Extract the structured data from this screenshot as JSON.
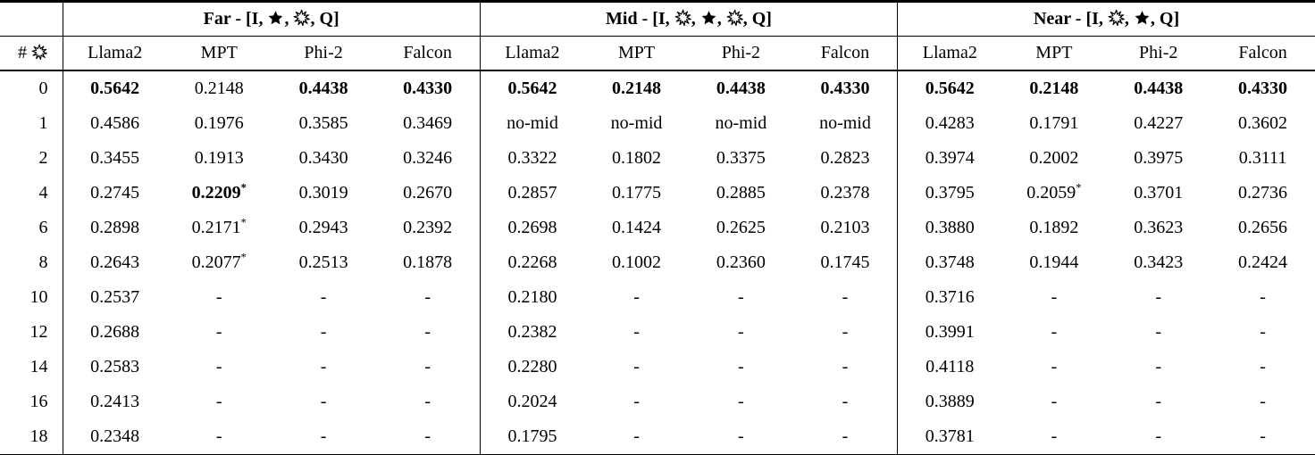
{
  "ui": {
    "hash": "#",
    "sep": ", ",
    "end": ", Q]",
    "asterisk": "*",
    "dash": "-",
    "text_color": "#000000",
    "background_color": "#ffffff",
    "icons": {
      "star": "star-icon",
      "collision": "collision-icon"
    }
  },
  "groups": [
    {
      "p1": "Far - [I, "
    },
    {
      "p1": "Mid - [I, "
    },
    {
      "p1": "Near - [I, "
    }
  ],
  "models": [
    "Llama2",
    "MPT",
    "Phi-2",
    "Falcon"
  ],
  "rows": [
    {
      "n": "0",
      "cells": [
        {
          "v": "0.5642",
          "b": true
        },
        {
          "v": "0.2148"
        },
        {
          "v": "0.4438",
          "b": true
        },
        {
          "v": "0.4330",
          "b": true
        },
        {
          "v": "0.5642",
          "b": true
        },
        {
          "v": "0.2148",
          "b": true
        },
        {
          "v": "0.4438",
          "b": true
        },
        {
          "v": "0.4330",
          "b": true
        },
        {
          "v": "0.5642",
          "b": true
        },
        {
          "v": "0.2148",
          "b": true
        },
        {
          "v": "0.4438",
          "b": true
        },
        {
          "v": "0.4330",
          "b": true
        }
      ]
    },
    {
      "n": "1",
      "cells": [
        {
          "v": "0.4586"
        },
        {
          "v": "0.1976"
        },
        {
          "v": "0.3585"
        },
        {
          "v": "0.3469"
        },
        {
          "v": "no-mid"
        },
        {
          "v": "no-mid"
        },
        {
          "v": "no-mid"
        },
        {
          "v": "no-mid"
        },
        {
          "v": "0.4283"
        },
        {
          "v": "0.1791"
        },
        {
          "v": "0.4227"
        },
        {
          "v": "0.3602"
        }
      ]
    },
    {
      "n": "2",
      "cells": [
        {
          "v": "0.3455"
        },
        {
          "v": "0.1913"
        },
        {
          "v": "0.3430"
        },
        {
          "v": "0.3246"
        },
        {
          "v": "0.3322"
        },
        {
          "v": "0.1802"
        },
        {
          "v": "0.3375"
        },
        {
          "v": "0.2823"
        },
        {
          "v": "0.3974"
        },
        {
          "v": "0.2002"
        },
        {
          "v": "0.3975"
        },
        {
          "v": "0.3111"
        }
      ]
    },
    {
      "n": "4",
      "cells": [
        {
          "v": "0.2745"
        },
        {
          "v": "0.2209",
          "b": true,
          "s": true
        },
        {
          "v": "0.3019"
        },
        {
          "v": "0.2670"
        },
        {
          "v": "0.2857"
        },
        {
          "v": "0.1775"
        },
        {
          "v": "0.2885"
        },
        {
          "v": "0.2378"
        },
        {
          "v": "0.3795"
        },
        {
          "v": "0.2059",
          "s": true
        },
        {
          "v": "0.3701"
        },
        {
          "v": "0.2736"
        }
      ]
    },
    {
      "n": "6",
      "cells": [
        {
          "v": "0.2898"
        },
        {
          "v": "0.2171",
          "s": true
        },
        {
          "v": "0.2943"
        },
        {
          "v": "0.2392"
        },
        {
          "v": "0.2698"
        },
        {
          "v": "0.1424"
        },
        {
          "v": "0.2625"
        },
        {
          "v": "0.2103"
        },
        {
          "v": "0.3880"
        },
        {
          "v": "0.1892"
        },
        {
          "v": "0.3623"
        },
        {
          "v": "0.2656"
        }
      ]
    },
    {
      "n": "8",
      "cells": [
        {
          "v": "0.2643"
        },
        {
          "v": "0.2077",
          "s": true
        },
        {
          "v": "0.2513"
        },
        {
          "v": "0.1878"
        },
        {
          "v": "0.2268"
        },
        {
          "v": "0.1002"
        },
        {
          "v": "0.2360"
        },
        {
          "v": "0.1745"
        },
        {
          "v": "0.3748"
        },
        {
          "v": "0.1944"
        },
        {
          "v": "0.3423"
        },
        {
          "v": "0.2424"
        }
      ]
    },
    {
      "n": "10",
      "cells": [
        {
          "v": "0.2537"
        },
        {
          "v": "-"
        },
        {
          "v": "-"
        },
        {
          "v": "-"
        },
        {
          "v": "0.2180"
        },
        {
          "v": "-"
        },
        {
          "v": "-"
        },
        {
          "v": "-"
        },
        {
          "v": "0.3716"
        },
        {
          "v": "-"
        },
        {
          "v": "-"
        },
        {
          "v": "-"
        }
      ]
    },
    {
      "n": "12",
      "cells": [
        {
          "v": "0.2688"
        },
        {
          "v": "-"
        },
        {
          "v": "-"
        },
        {
          "v": "-"
        },
        {
          "v": "0.2382"
        },
        {
          "v": "-"
        },
        {
          "v": "-"
        },
        {
          "v": "-"
        },
        {
          "v": "0.3991"
        },
        {
          "v": "-"
        },
        {
          "v": "-"
        },
        {
          "v": "-"
        }
      ]
    },
    {
      "n": "14",
      "cells": [
        {
          "v": "0.2583"
        },
        {
          "v": "-"
        },
        {
          "v": "-"
        },
        {
          "v": "-"
        },
        {
          "v": "0.2280"
        },
        {
          "v": "-"
        },
        {
          "v": "-"
        },
        {
          "v": "-"
        },
        {
          "v": "0.4118"
        },
        {
          "v": "-"
        },
        {
          "v": "-"
        },
        {
          "v": "-"
        }
      ]
    },
    {
      "n": "16",
      "cells": [
        {
          "v": "0.2413"
        },
        {
          "v": "-"
        },
        {
          "v": "-"
        },
        {
          "v": "-"
        },
        {
          "v": "0.2024"
        },
        {
          "v": "-"
        },
        {
          "v": "-"
        },
        {
          "v": "-"
        },
        {
          "v": "0.3889"
        },
        {
          "v": "-"
        },
        {
          "v": "-"
        },
        {
          "v": "-"
        }
      ]
    },
    {
      "n": "18",
      "cells": [
        {
          "v": "0.2348"
        },
        {
          "v": "-"
        },
        {
          "v": "-"
        },
        {
          "v": "-"
        },
        {
          "v": "0.1795"
        },
        {
          "v": "-"
        },
        {
          "v": "-"
        },
        {
          "v": "-"
        },
        {
          "v": "0.3781"
        },
        {
          "v": "-"
        },
        {
          "v": "-"
        },
        {
          "v": "-"
        }
      ]
    }
  ]
}
